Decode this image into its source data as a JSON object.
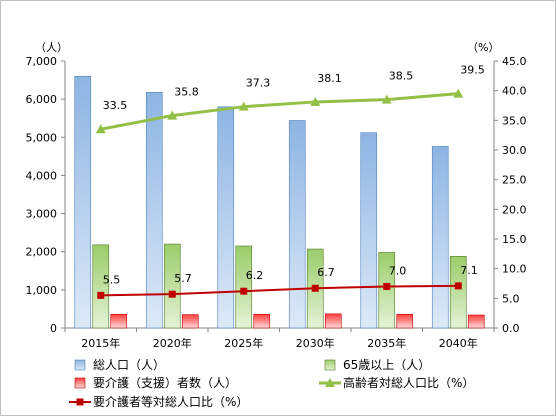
{
  "chart_data": {
    "type": "bar",
    "categories": [
      "2015年",
      "2020年",
      "2025年",
      "2030年",
      "2035年",
      "2040年"
    ],
    "left_axis": {
      "unit": "（人）",
      "ylim": [
        0,
        7000
      ],
      "ticks": [
        "0",
        "1,000",
        "2,000",
        "3,000",
        "4,000",
        "5,000",
        "6,000",
        "7,000"
      ]
    },
    "right_axis": {
      "unit": "（%）",
      "ylim": [
        0,
        45
      ],
      "ticks": [
        "0.0",
        "5.0",
        "10.0",
        "15.0",
        "20.0",
        "25.0",
        "30.0",
        "35.0",
        "40.0",
        "45.0"
      ]
    },
    "series": [
      {
        "name": "総人口（人）",
        "kind": "bar",
        "axis": "left",
        "color": "#9dc3e6",
        "values": [
          6600,
          6180,
          5800,
          5440,
          5120,
          4760
        ]
      },
      {
        "name": "65歳以上（人）",
        "kind": "bar",
        "axis": "left",
        "color": "#a9d18e",
        "values": [
          2180,
          2200,
          2150,
          2070,
          1980,
          1880
        ]
      },
      {
        "name": "要介護（支援）者数（人）",
        "kind": "bar",
        "axis": "left",
        "color": "#ff5050",
        "values": [
          360,
          350,
          360,
          370,
          360,
          340
        ]
      },
      {
        "name": "高齢者対総人口比（%）",
        "kind": "line",
        "axis": "right",
        "color": "#92c047",
        "values": [
          33.5,
          35.8,
          37.3,
          38.1,
          38.5,
          39.5
        ],
        "labels": [
          "33.5",
          "35.8",
          "37.3",
          "38.1",
          "38.5",
          "39.5"
        ]
      },
      {
        "name": "要介護者等対総人口比（%）",
        "kind": "line",
        "axis": "right",
        "color": "#c00000",
        "values": [
          5.5,
          5.7,
          6.2,
          6.7,
          7.0,
          7.1
        ],
        "labels": [
          "5.5",
          "5.7",
          "6.2",
          "6.7",
          "7.0",
          "7.1"
        ]
      }
    ],
    "legend_position": "bottom",
    "grid": false
  }
}
